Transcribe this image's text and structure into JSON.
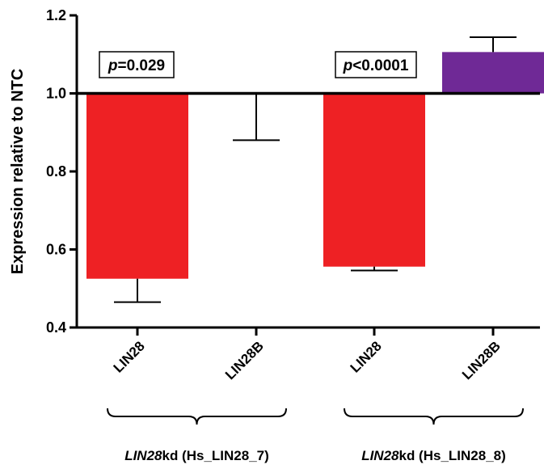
{
  "chart_data": {
    "type": "bar",
    "ylabel": "Expression relative to NTC",
    "xlabel": "",
    "title": "",
    "ylim": [
      0.4,
      1.2
    ],
    "yticks": [
      "0.4",
      "0.6",
      "0.8",
      "1.0",
      "1.2"
    ],
    "baseline": 1.0,
    "categories": [
      "LIN28",
      "LIN28B",
      "LIN28",
      "LIN28B"
    ],
    "values": [
      0.525,
      1.0,
      0.556,
      1.106
    ],
    "error_ends": [
      0.465,
      0.88,
      0.546,
      1.144
    ],
    "bar_colors": [
      "#ee2124",
      "#ee2124",
      "#ee2124",
      "#6f2996"
    ],
    "groups": [
      {
        "prefix": "LIN28",
        "suffix": "kd (Hs_LIN28_7)",
        "p_prefix": "p",
        "p_value": "=0.029"
      },
      {
        "prefix": "LIN28",
        "suffix": "kd (Hs_LIN28_8)",
        "p_prefix": "p",
        "p_value": "<0.0001"
      }
    ]
  }
}
